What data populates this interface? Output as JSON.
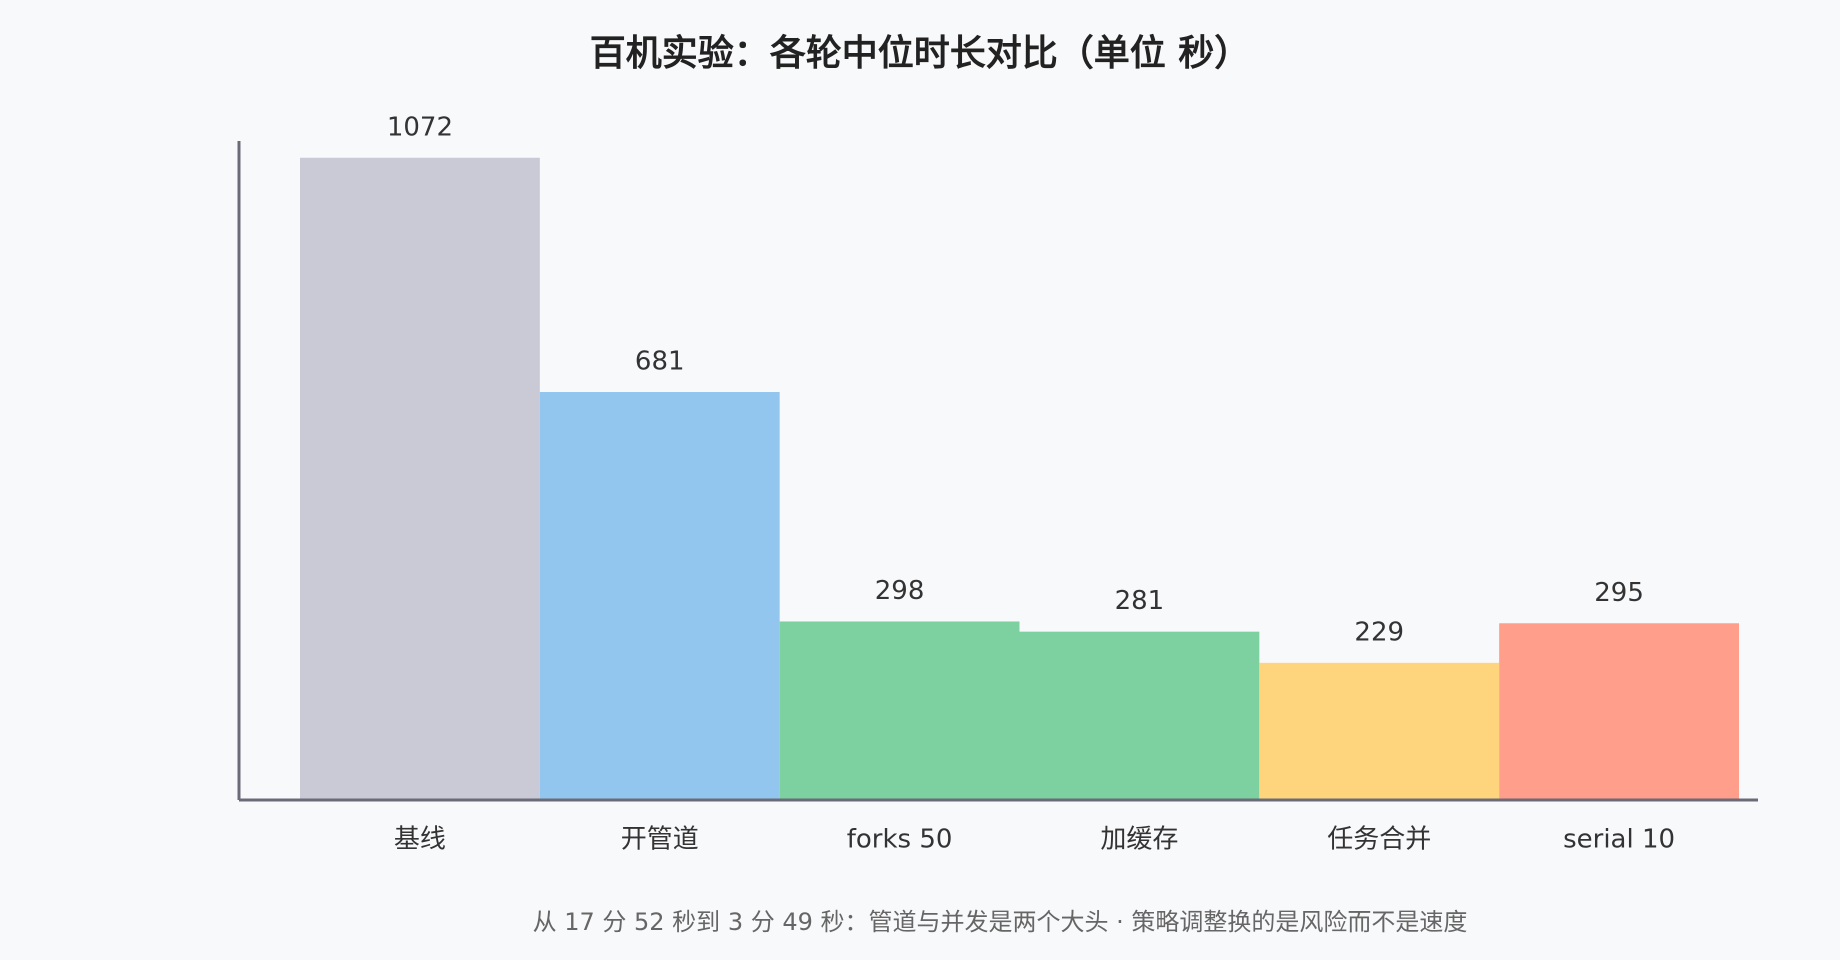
{
  "chart_data": {
    "type": "bar",
    "title": "百机实验：各轮中位时长对比（单位 秒）",
    "subtitle": "从 17 分 52 秒到 3 分 49 秒：管道与并发是两个大头 · 策略调整换的是风险而不是速度",
    "categories": [
      "基线",
      "开管道",
      "forks 50",
      "加缓存",
      "任务合并",
      "serial 10"
    ],
    "values": [
      1072,
      681,
      298,
      281,
      229,
      295
    ],
    "colors": [
      "#c9cad5",
      "#93c6ef",
      "#7dd1a1",
      "#7dd1a1",
      "#fed57c",
      "#ff9e8a"
    ],
    "ylim": [
      0,
      1100
    ]
  }
}
